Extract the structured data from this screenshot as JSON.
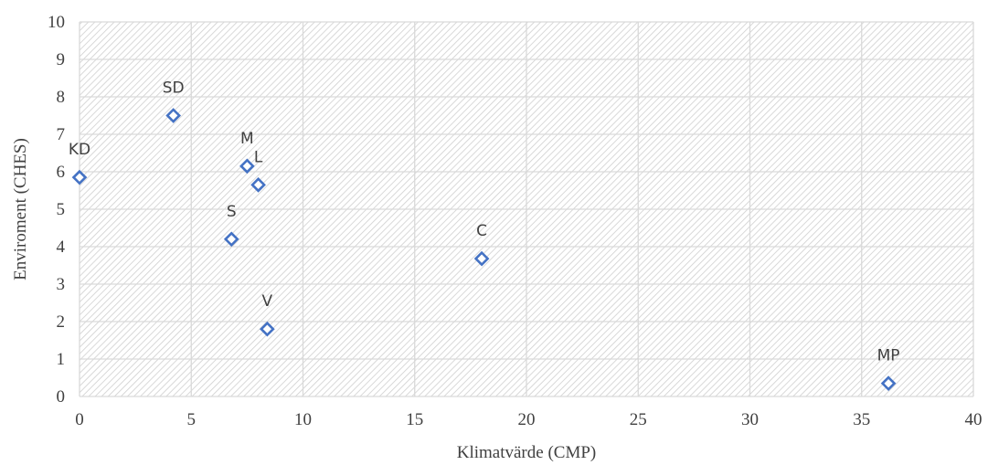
{
  "chart_data": {
    "type": "scatter",
    "title": "",
    "xlabel": "Klimatvärde (CMP)",
    "ylabel": "Enviroment  (CHES)",
    "xlim": [
      0,
      40
    ],
    "ylim": [
      0,
      10
    ],
    "xticks": [
      "0",
      "5",
      "10",
      "15",
      "20",
      "25",
      "30",
      "35",
      "40"
    ],
    "yticks": [
      "0",
      "1",
      "2",
      "3",
      "4",
      "5",
      "6",
      "7",
      "8",
      "9",
      "10"
    ],
    "grid": true,
    "marker": "diamond-open",
    "marker_color": "#4472c4",
    "points": [
      {
        "label": "KD",
        "x": 0.0,
        "y": 5.85
      },
      {
        "label": "SD",
        "x": 4.2,
        "y": 7.5
      },
      {
        "label": "M",
        "x": 7.5,
        "y": 6.15
      },
      {
        "label": "L",
        "x": 8.0,
        "y": 5.65
      },
      {
        "label": "S",
        "x": 6.8,
        "y": 4.2
      },
      {
        "label": "V",
        "x": 8.4,
        "y": 1.8
      },
      {
        "label": "C",
        "x": 18.0,
        "y": 3.68
      },
      {
        "label": "MP",
        "x": 36.2,
        "y": 0.35
      }
    ]
  }
}
